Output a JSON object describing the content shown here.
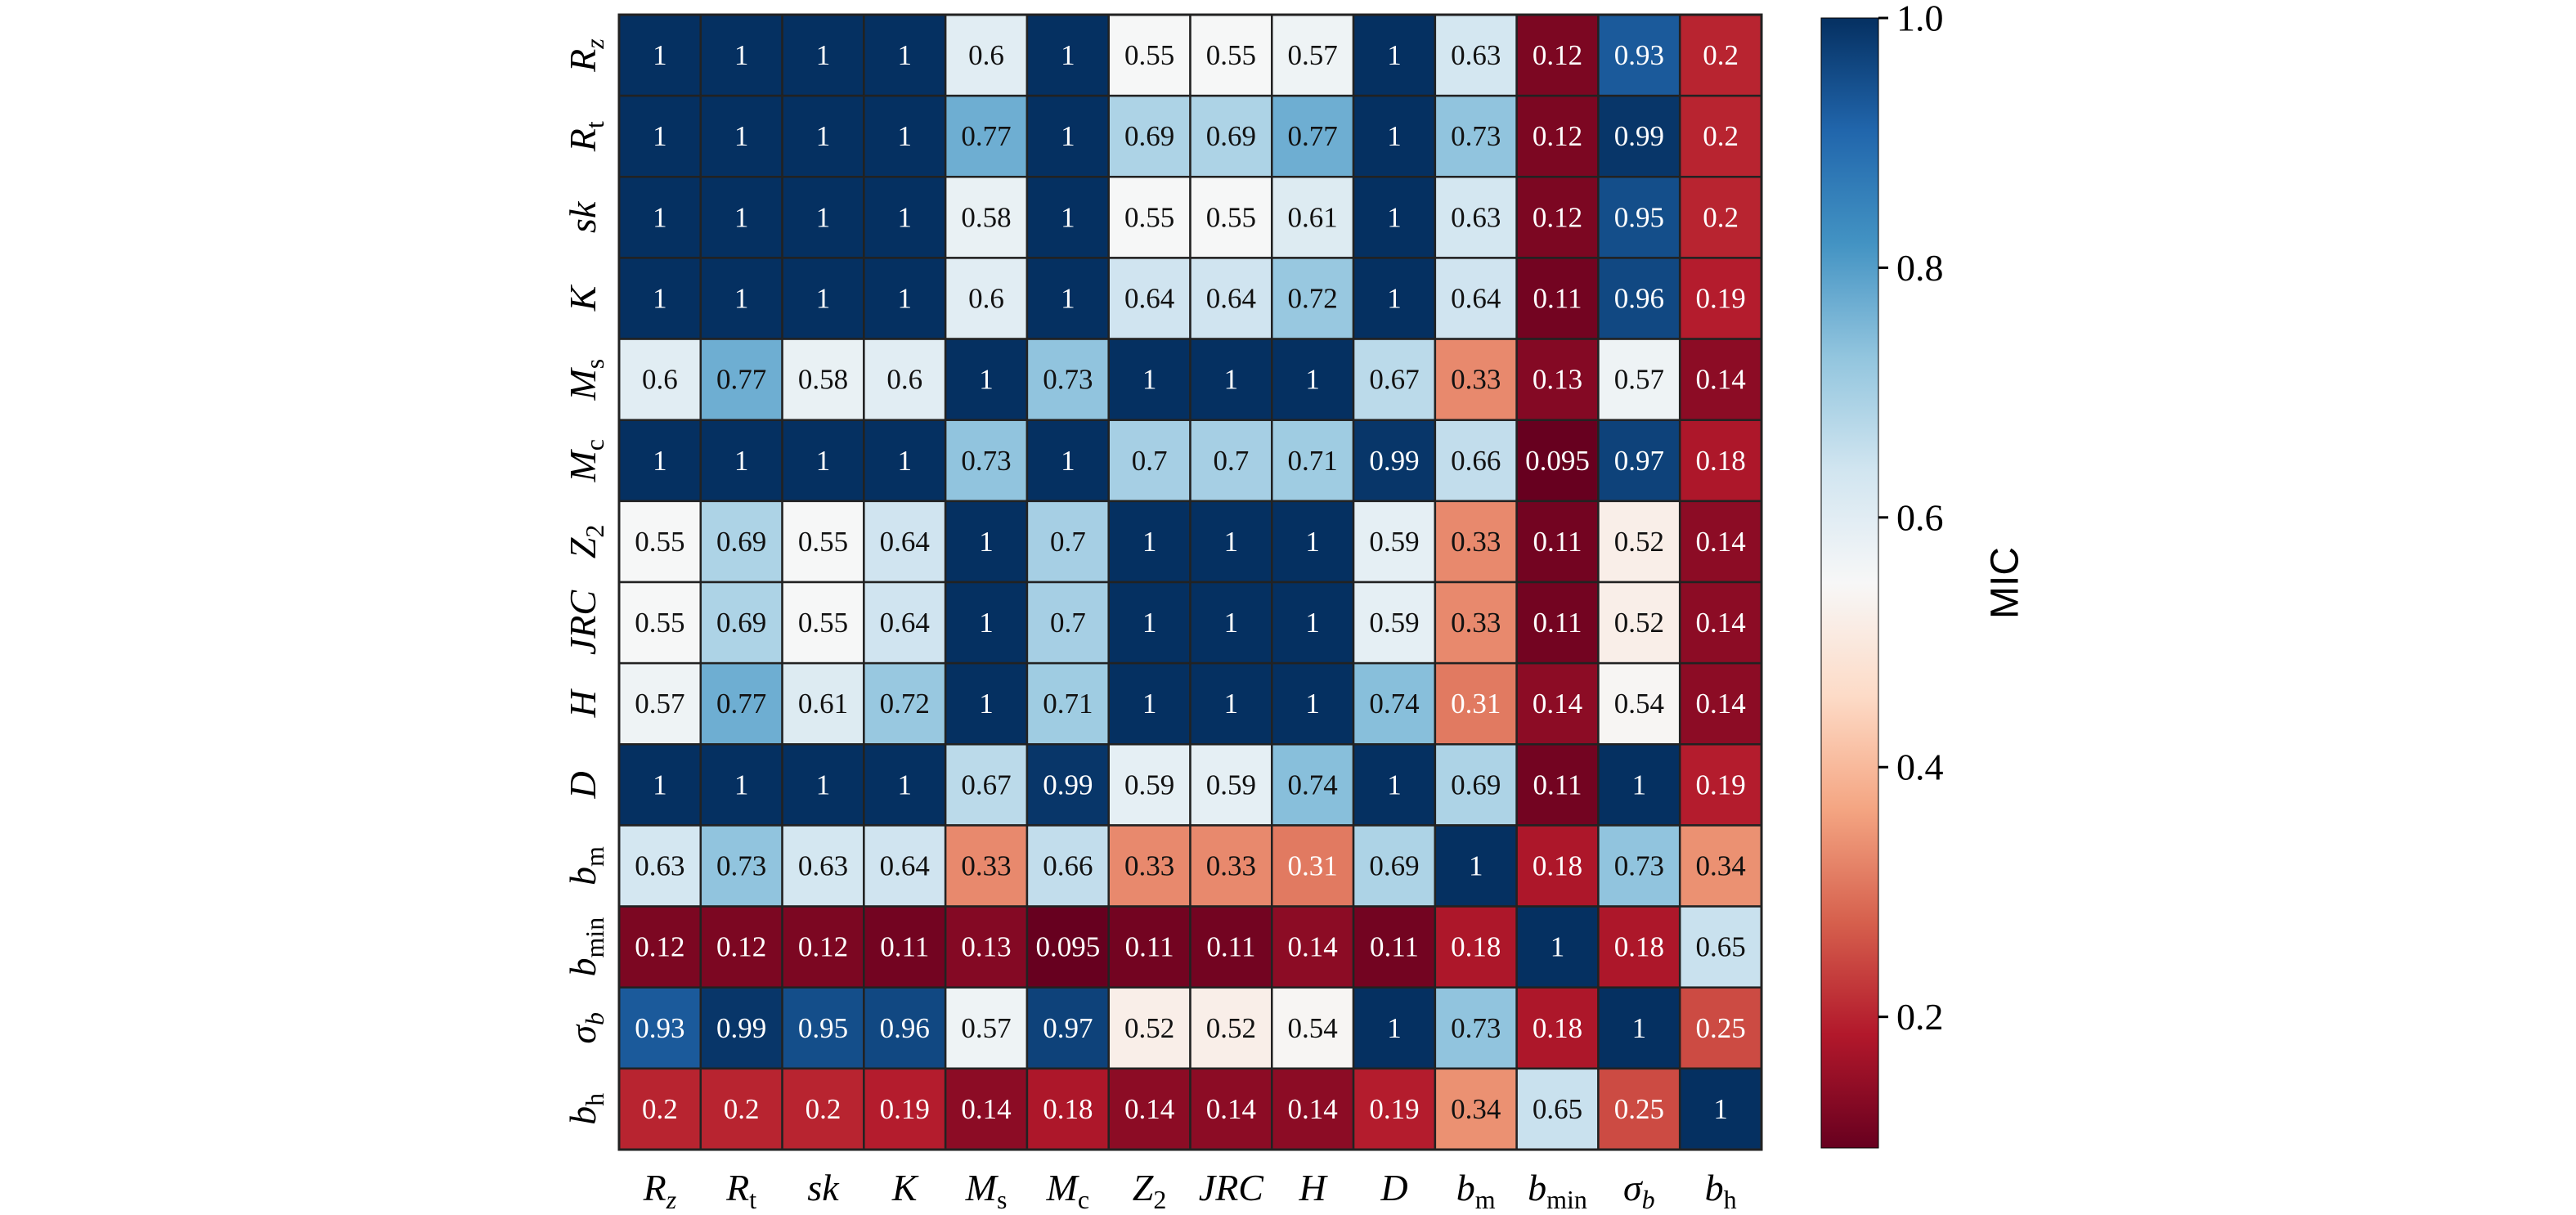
{
  "chart_data": {
    "type": "heatmap",
    "title": "",
    "labels": [
      {
        "base": "R",
        "sub": "z",
        "sub_italic": true
      },
      {
        "base": "R",
        "sub": "t",
        "sub_italic": false
      },
      {
        "base": "sk",
        "sub": "",
        "sub_italic": false
      },
      {
        "base": "K",
        "sub": "",
        "sub_italic": false
      },
      {
        "base": "M",
        "sub": "s",
        "sub_italic": false
      },
      {
        "base": "M",
        "sub": "c",
        "sub_italic": false
      },
      {
        "base": "Z",
        "sub": "2",
        "sub_italic": false
      },
      {
        "base": "JRC",
        "sub": "",
        "sub_italic": false
      },
      {
        "base": "H",
        "sub": "",
        "sub_italic": false
      },
      {
        "base": "D",
        "sub": "",
        "sub_italic": false
      },
      {
        "base": "b",
        "sub": "m",
        "sub_italic": false
      },
      {
        "base": "b",
        "sub": "min",
        "sub_italic": false
      },
      {
        "base": "σ",
        "sub": "b",
        "sub_italic": true
      },
      {
        "base": "b",
        "sub": "h",
        "sub_italic": false
      }
    ],
    "matrix": [
      [
        1,
        1,
        1,
        1,
        0.6,
        1,
        0.55,
        0.55,
        0.57,
        1,
        0.63,
        0.12,
        0.93,
        0.2
      ],
      [
        1,
        1,
        1,
        1,
        0.77,
        1,
        0.69,
        0.69,
        0.77,
        1,
        0.73,
        0.12,
        0.99,
        0.2
      ],
      [
        1,
        1,
        1,
        1,
        0.58,
        1,
        0.55,
        0.55,
        0.61,
        1,
        0.63,
        0.12,
        0.95,
        0.2
      ],
      [
        1,
        1,
        1,
        1,
        0.6,
        1,
        0.64,
        0.64,
        0.72,
        1,
        0.64,
        0.11,
        0.96,
        0.19
      ],
      [
        0.6,
        0.77,
        0.58,
        0.6,
        1,
        0.73,
        1,
        1,
        1,
        0.67,
        0.33,
        0.13,
        0.57,
        0.14
      ],
      [
        1,
        1,
        1,
        1,
        0.73,
        1,
        0.7,
        0.7,
        0.71,
        0.99,
        0.66,
        0.095,
        0.97,
        0.18
      ],
      [
        0.55,
        0.69,
        0.55,
        0.64,
        1,
        0.7,
        1,
        1,
        1,
        0.59,
        0.33,
        0.11,
        0.52,
        0.14
      ],
      [
        0.55,
        0.69,
        0.55,
        0.64,
        1,
        0.7,
        1,
        1,
        1,
        0.59,
        0.33,
        0.11,
        0.52,
        0.14
      ],
      [
        0.57,
        0.77,
        0.61,
        0.72,
        1,
        0.71,
        1,
        1,
        1,
        0.74,
        0.31,
        0.14,
        0.54,
        0.14
      ],
      [
        1,
        1,
        1,
        1,
        0.67,
        0.99,
        0.59,
        0.59,
        0.74,
        1,
        0.69,
        0.11,
        1,
        0.19
      ],
      [
        0.63,
        0.73,
        0.63,
        0.64,
        0.33,
        0.66,
        0.33,
        0.33,
        0.31,
        0.69,
        1,
        0.18,
        0.73,
        0.34
      ],
      [
        0.12,
        0.12,
        0.12,
        0.11,
        0.13,
        0.095,
        0.11,
        0.11,
        0.14,
        0.11,
        0.18,
        1,
        0.18,
        0.65
      ],
      [
        0.93,
        0.99,
        0.95,
        0.96,
        0.57,
        0.97,
        0.52,
        0.52,
        0.54,
        1,
        0.73,
        0.18,
        1,
        0.25
      ],
      [
        0.2,
        0.2,
        0.2,
        0.19,
        0.14,
        0.18,
        0.14,
        0.14,
        0.14,
        0.19,
        0.34,
        0.65,
        0.25,
        1
      ]
    ],
    "colorbar": {
      "label": "MIC",
      "range": [
        0.095,
        1.0
      ],
      "ticks": [
        0.2,
        0.4,
        0.6,
        0.8,
        1.0
      ],
      "tick_labels": [
        "0.2",
        "0.4",
        "0.6",
        "0.8",
        "1.0"
      ],
      "colormap": "RdBu"
    },
    "grid": true,
    "legend": "right"
  }
}
